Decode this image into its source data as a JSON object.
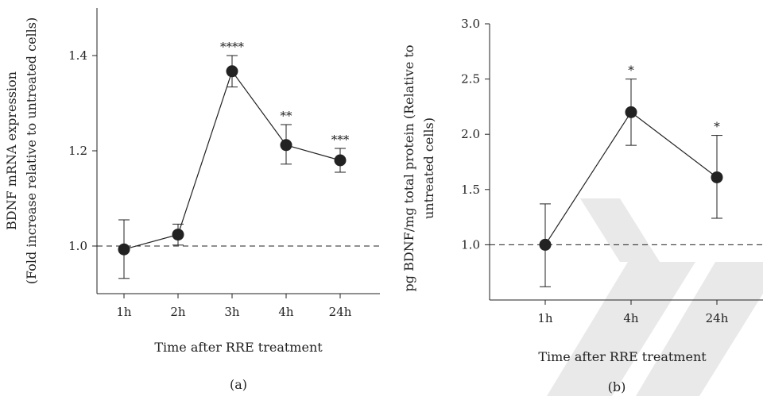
{
  "colors": {
    "ink": "#222222",
    "watermark": "#e9e9e9"
  },
  "chart_data": [
    {
      "type": "line",
      "panel_label": "(a)",
      "categories": [
        "1h",
        "2h",
        "3h",
        "4h",
        "24h"
      ],
      "values": [
        0.993,
        1.024,
        1.367,
        1.212,
        1.18
      ],
      "error_upper": [
        1.055,
        1.046,
        1.4,
        1.255,
        1.205
      ],
      "error_lower": [
        0.932,
        1.002,
        1.334,
        1.172,
        1.155
      ],
      "significance": [
        "",
        "",
        "****",
        "**",
        "***"
      ],
      "ylim": [
        0.9,
        1.5
      ],
      "yticks": [
        "1.0",
        "1.2",
        "1.4"
      ],
      "ytick_values": [
        1.0,
        1.2,
        1.4
      ],
      "baseline": 1.0,
      "ylabel_lines": [
        "BDNF mRNA expression",
        "(Fold increase relative to untreated cells)"
      ],
      "xlabel": "Time after RRE treatment"
    },
    {
      "type": "line",
      "panel_label": "(b)",
      "categories": [
        "1h",
        "4h",
        "24h"
      ],
      "values": [
        1.0,
        2.2,
        1.61
      ],
      "error_upper": [
        1.37,
        2.5,
        1.99
      ],
      "error_lower": [
        0.62,
        1.9,
        1.24
      ],
      "significance": [
        "",
        "*",
        "*"
      ],
      "ylim": [
        0.5,
        3.0
      ],
      "yticks": [
        "1.0",
        "1.5",
        "2.0",
        "2.5",
        "3.0"
      ],
      "ytick_values": [
        1.0,
        1.5,
        2.0,
        2.5,
        3.0
      ],
      "baseline": 1.0,
      "ylabel_lines": [
        "pg BDNF/mg total protein (Relative to",
        "untreated cells)"
      ],
      "xlabel": "Time after RRE treatment"
    }
  ]
}
